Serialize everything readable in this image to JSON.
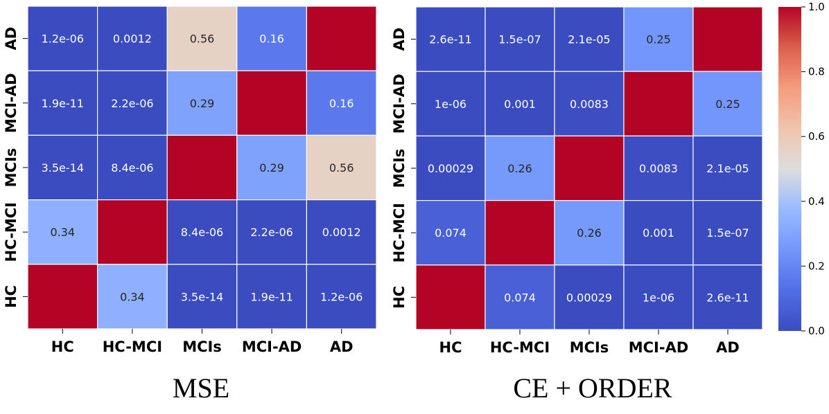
{
  "chart_data": [
    {
      "type": "heatmap",
      "caption": "MSE",
      "x_categories": [
        "HC",
        "HC-MCI",
        "MCIs",
        "MCI-AD",
        "AD"
      ],
      "y_categories_top_to_bottom": [
        "AD",
        "MCI-AD",
        "MCIs",
        "HC-MCI",
        "HC"
      ],
      "values": [
        [
          1.2e-06,
          0.0012,
          0.56,
          0.16,
          1.0
        ],
        [
          1.9e-11,
          2.2e-06,
          0.29,
          1.0,
          0.16
        ],
        [
          3.5e-14,
          8.4e-06,
          1.0,
          0.29,
          0.56
        ],
        [
          0.34,
          1.0,
          8.4e-06,
          2.2e-06,
          0.0012
        ],
        [
          1.0,
          0.34,
          3.5e-14,
          1.9e-11,
          1.2e-06
        ]
      ],
      "labels": [
        [
          "1.2e-06",
          "0.0012",
          "0.56",
          "0.16",
          ""
        ],
        [
          "1.9e-11",
          "2.2e-06",
          "0.29",
          "",
          "0.16"
        ],
        [
          "3.5e-14",
          "8.4e-06",
          "",
          "0.29",
          "0.56"
        ],
        [
          "0.34",
          "",
          "8.4e-06",
          "2.2e-06",
          "0.0012"
        ],
        [
          "",
          "0.34",
          "3.5e-14",
          "1.9e-11",
          "1.2e-06"
        ]
      ],
      "colormap": "coolwarm",
      "vmin": 0,
      "vmax": 1
    },
    {
      "type": "heatmap",
      "caption": "CE + ORDER",
      "x_categories": [
        "HC",
        "HC-MCI",
        "MCIs",
        "MCI-AD",
        "AD"
      ],
      "y_categories_top_to_bottom": [
        "AD",
        "MCI-AD",
        "MCIs",
        "HC-MCI",
        "HC"
      ],
      "values": [
        [
          2.6e-11,
          1.5e-07,
          2.1e-05,
          0.25,
          1.0
        ],
        [
          1e-06,
          0.001,
          0.0083,
          1.0,
          0.25
        ],
        [
          0.00029,
          0.26,
          1.0,
          0.0083,
          2.1e-05
        ],
        [
          0.074,
          1.0,
          0.26,
          0.001,
          1.5e-07
        ],
        [
          1.0,
          0.074,
          0.00029,
          1e-06,
          2.6e-11
        ]
      ],
      "labels": [
        [
          "2.6e-11",
          "1.5e-07",
          "2.1e-05",
          "0.25",
          ""
        ],
        [
          "1e-06",
          "0.001",
          "0.0083",
          "",
          "0.25"
        ],
        [
          "0.00029",
          "0.26",
          "",
          "0.0083",
          "2.1e-05"
        ],
        [
          "0.074",
          "",
          "0.26",
          "0.001",
          "1.5e-07"
        ],
        [
          "",
          "0.074",
          "0.00029",
          "1e-06",
          "2.6e-11"
        ]
      ],
      "colormap": "coolwarm",
      "vmin": 0,
      "vmax": 1
    }
  ],
  "colorbar": {
    "ticks": [
      0.0,
      0.2,
      0.4,
      0.6,
      0.8,
      1.0
    ],
    "tick_labels": [
      "0.0",
      "0.2",
      "0.4",
      "0.6",
      "0.8",
      "1.0"
    ]
  }
}
